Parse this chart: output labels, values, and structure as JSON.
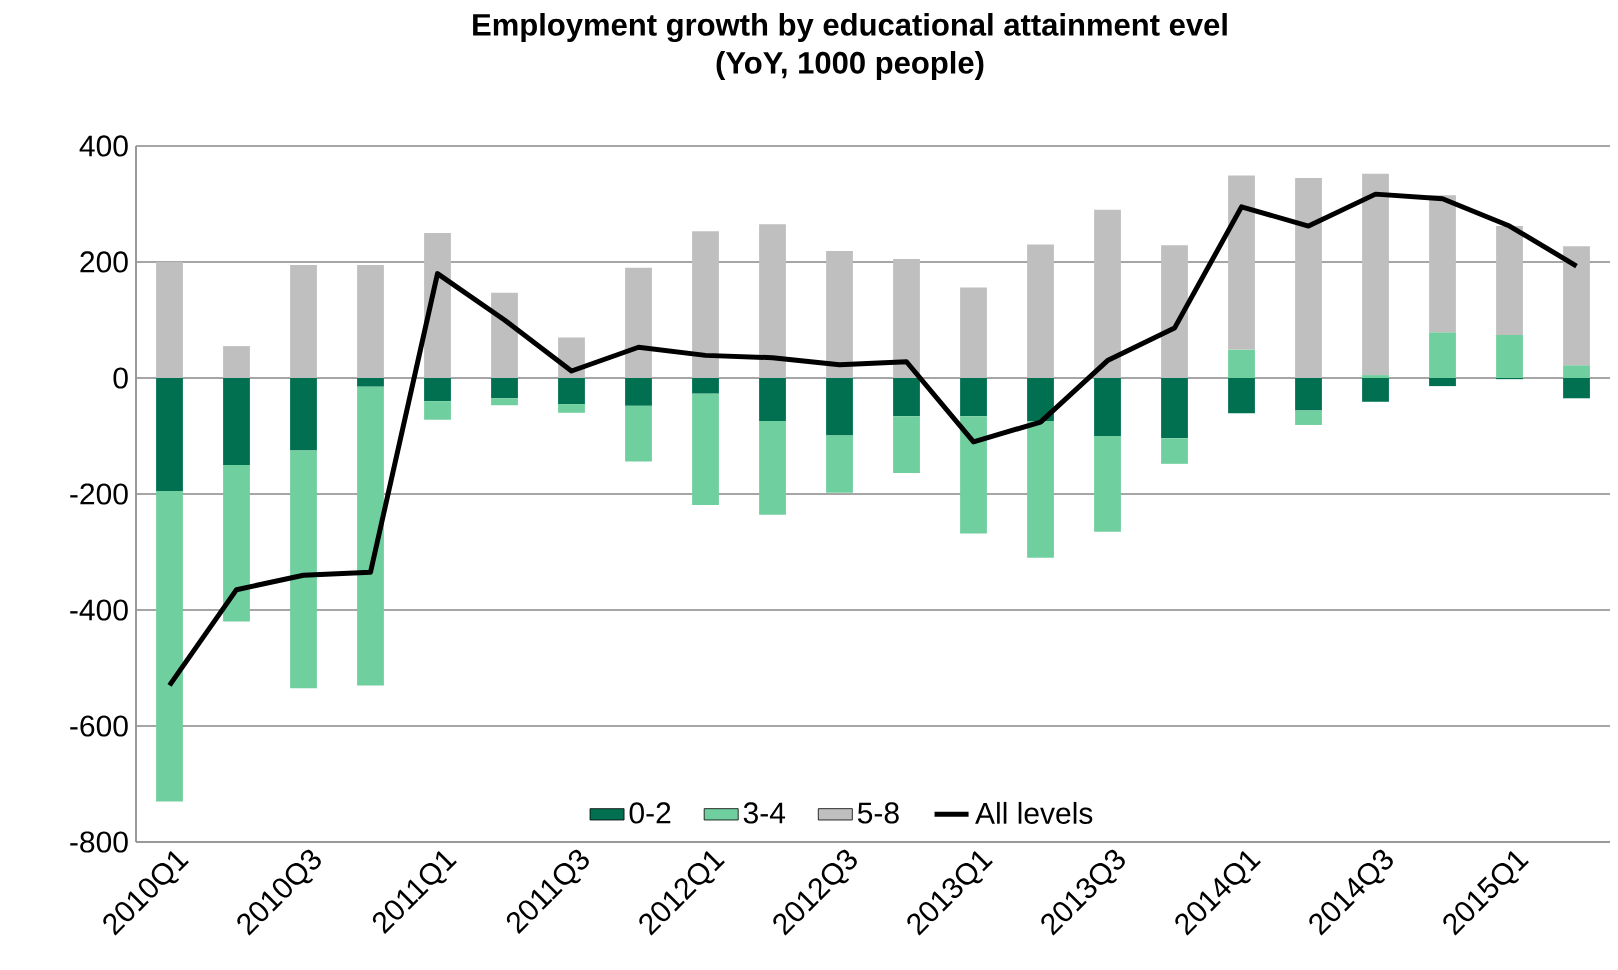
{
  "chart_data": {
    "type": "bar",
    "stacked": true,
    "title": "Employment growth by educational attainment evel",
    "subtitle": "(YoY, 1000 people)",
    "categories": [
      "2010Q1",
      null,
      "2010Q3",
      null,
      "2011Q1",
      null,
      "2011Q3",
      null,
      "2012Q1",
      null,
      "2012Q3",
      null,
      "2013Q1",
      null,
      "2013Q3",
      null,
      "2014Q1",
      null,
      "2014Q3",
      null,
      "2015Q1",
      null
    ],
    "series": [
      {
        "name": "0-2",
        "color": "#007050",
        "values": [
          -195,
          -150,
          -125,
          -15,
          -40,
          -35,
          -45,
          -48,
          -27,
          -74,
          -99,
          -66,
          -66,
          -74,
          -100,
          -104,
          -61,
          -56,
          -41,
          -14,
          -2,
          -35
        ]
      },
      {
        "name": "3-4",
        "color": "#70cf9e",
        "values": [
          -535,
          -270,
          -410,
          -515,
          -32,
          -12,
          -15,
          -96,
          -192,
          -162,
          -99,
          -98,
          -202,
          -236,
          -165,
          -44,
          49,
          -25,
          5,
          79,
          74,
          22
        ]
      },
      {
        "name": "5-8",
        "color": "#bfbfbf",
        "values": [
          200,
          55,
          195,
          195,
          250,
          147,
          70,
          190,
          253,
          265,
          219,
          205,
          156,
          230,
          290,
          229,
          300,
          345,
          347,
          236,
          188,
          205
        ]
      },
      {
        "name": "All levels",
        "type": "line",
        "color": "#000000",
        "values": [
          -530,
          -365,
          -340,
          -335,
          180,
          100,
          12,
          53,
          39,
          35,
          23,
          28,
          -110,
          -76,
          30,
          86,
          295,
          262,
          317,
          309,
          262,
          193
        ]
      }
    ],
    "ylim": [
      -800,
      400
    ],
    "yticks": [
      -800,
      -600,
      -400,
      -200,
      0,
      200,
      400
    ],
    "grid": "y",
    "legend": "bottom"
  }
}
